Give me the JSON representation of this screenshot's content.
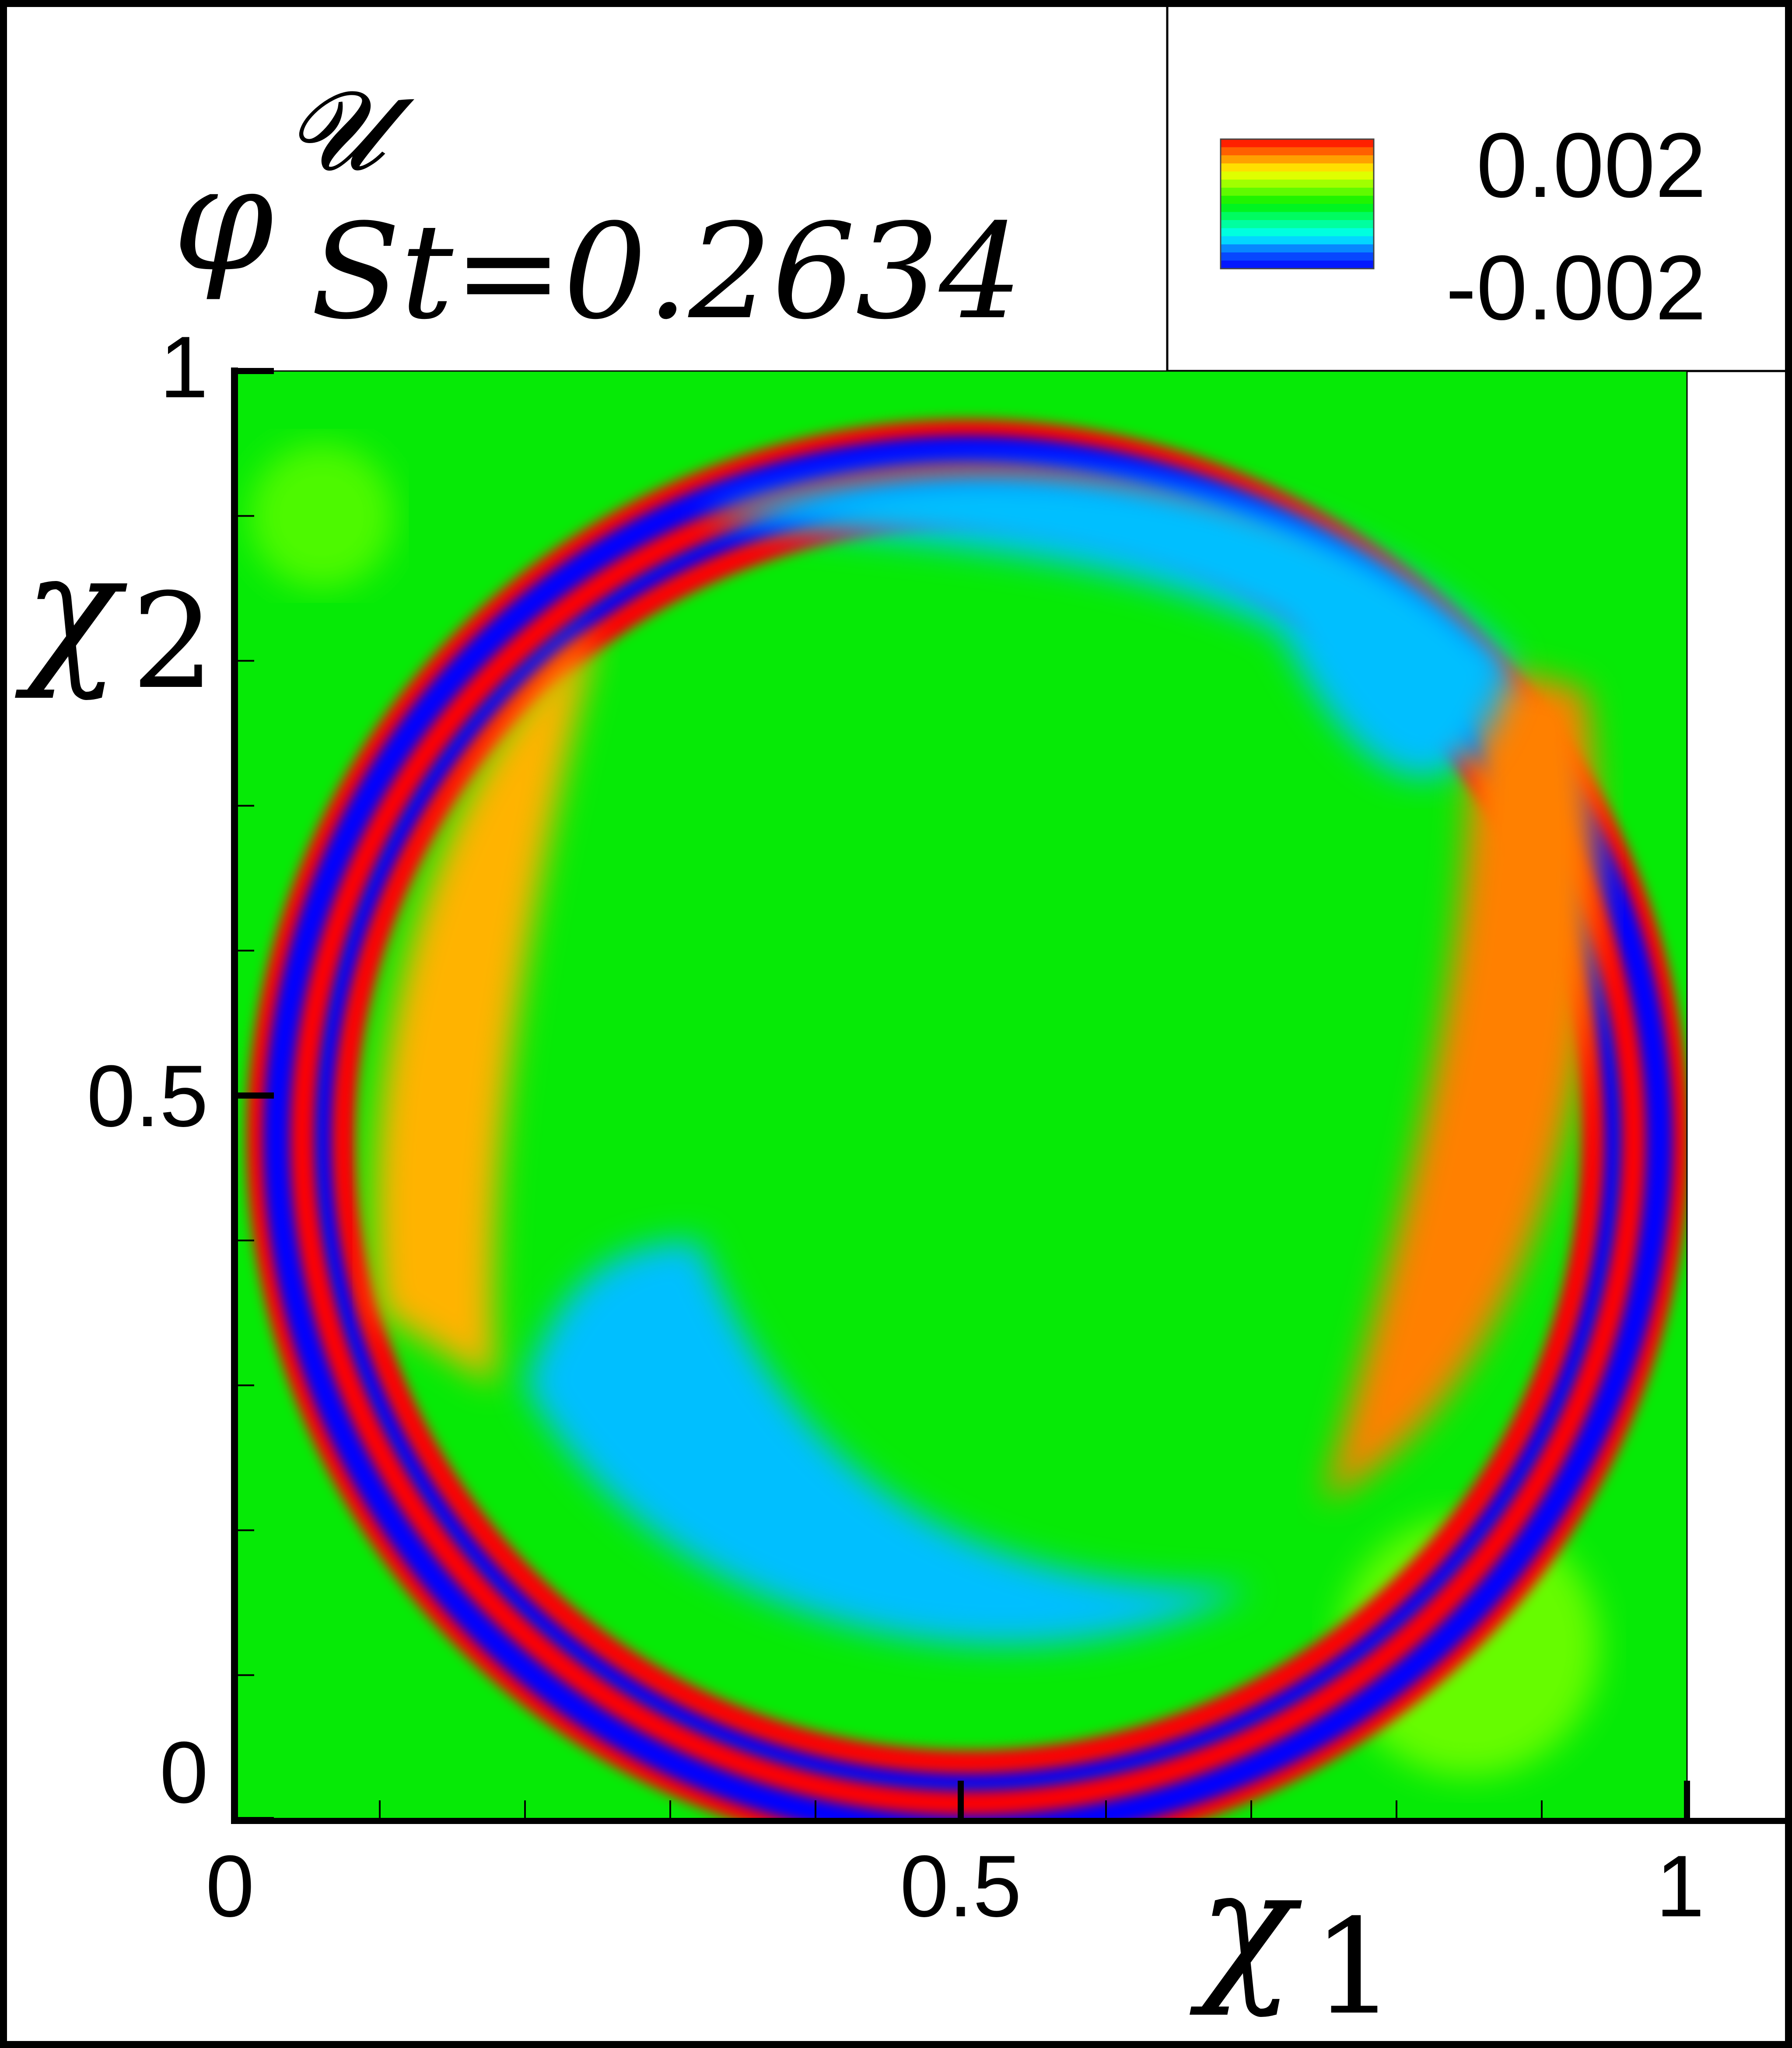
{
  "chart_data": {
    "type": "heatmap",
    "title": {
      "symbol": "φ",
      "superscript": "𝓤",
      "subscript": "St=0.2634"
    },
    "xlabel": {
      "symbol": "χ",
      "sub": "1"
    },
    "ylabel": {
      "symbol": "χ",
      "sub": "2"
    },
    "xlim": [
      0,
      1
    ],
    "ylim": [
      0,
      1
    ],
    "x_ticks": [
      {
        "value": 0,
        "label": "0"
      },
      {
        "value": 0.5,
        "label": "0.5"
      },
      {
        "value": 1,
        "label": "1"
      }
    ],
    "y_ticks": [
      {
        "value": 0,
        "label": "0"
      },
      {
        "value": 0.5,
        "label": "0.5"
      },
      {
        "value": 1,
        "label": "1"
      }
    ],
    "x_minor_step": 0.1,
    "y_minor_step": 0.1,
    "colorbar": {
      "max_label": "0.002",
      "min_label": "-0.002",
      "vmin": -0.002,
      "vmax": 0.002,
      "colormap": [
        "#0000ff",
        "#0a60ff",
        "#00ffff",
        "#00ff80",
        "#00f000",
        "#80ff00",
        "#ffff00",
        "#ff8000",
        "#ff0000"
      ]
    },
    "background_color": "#06ea06",
    "regions": [
      {
        "name": "outer-ring",
        "level": 0.002
      },
      {
        "name": "inner-band",
        "level": -0.002
      },
      {
        "name": "left-lobe",
        "level": 0.0013
      },
      {
        "name": "right-lobe",
        "level": 0.0015
      },
      {
        "name": "upper-trough",
        "level": -0.0012
      },
      {
        "name": "lower-trough",
        "level": -0.0012
      },
      {
        "name": "top-left-eddy",
        "level": 0.0003
      },
      {
        "name": "bottom-right-eddy",
        "level": 0.0004
      }
    ]
  }
}
